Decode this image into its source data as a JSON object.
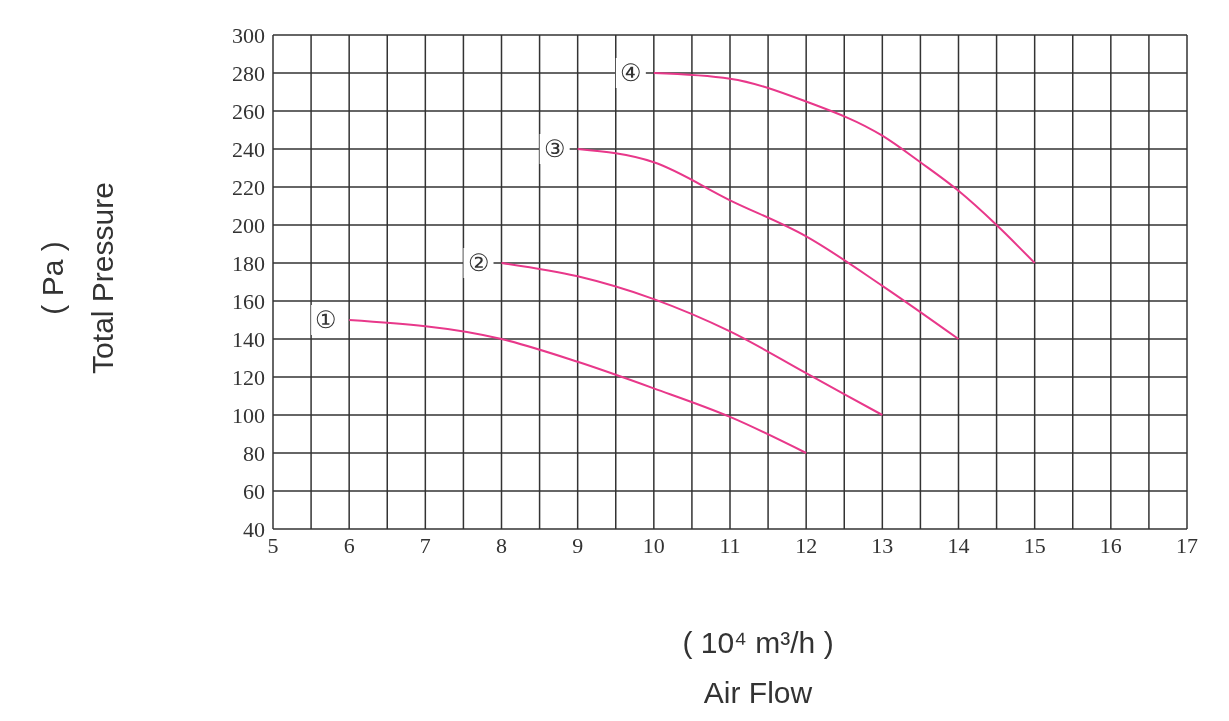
{
  "chart_data": {
    "type": "line",
    "xlabel": "( 10⁴ m³/h )\nAir Flow",
    "ylabel": "( Pa )\nTotal Pressure",
    "xlim": [
      5,
      17
    ],
    "ylim": [
      40,
      300
    ],
    "xticks": [
      5,
      {
        "value": 5.5,
        "label": null
      },
      6,
      {
        "value": 6.5,
        "label": null
      },
      7,
      {
        "value": 7.5,
        "label": null
      },
      8,
      {
        "value": 8.5,
        "label": null
      },
      9,
      {
        "value": 9.5,
        "label": null
      },
      10,
      {
        "value": 10.5,
        "label": null
      },
      11,
      {
        "value": 11.5,
        "label": null
      },
      12,
      {
        "value": 12.5,
        "label": null
      },
      13,
      {
        "value": 13.5,
        "label": null
      },
      14,
      {
        "value": 14.5,
        "label": null
      },
      15,
      {
        "value": 15.5,
        "label": null
      },
      16,
      {
        "value": 16.5,
        "label": null
      },
      17
    ],
    "yticks": [
      40,
      60,
      80,
      100,
      120,
      140,
      160,
      180,
      200,
      220,
      240,
      260,
      280,
      300
    ],
    "grid": true,
    "legend": false,
    "marker": "none",
    "line_style": "solid",
    "series": [
      {
        "name": "①",
        "color": "#e8388a",
        "x": [
          6,
          8,
          9,
          10,
          11,
          12
        ],
        "values": [
          150,
          140,
          128,
          114,
          99,
          80
        ]
      },
      {
        "name": "②",
        "color": "#e8388a",
        "x": [
          8,
          9,
          10,
          11,
          12,
          13
        ],
        "values": [
          180,
          173,
          161,
          144,
          122,
          100
        ]
      },
      {
        "name": "③",
        "color": "#e8388a",
        "x": [
          9,
          10,
          11,
          12,
          13,
          14
        ],
        "values": [
          240,
          233,
          213,
          194,
          168,
          140
        ]
      },
      {
        "name": "④",
        "color": "#e8388a",
        "x": [
          10,
          11,
          12,
          13,
          13.5,
          14,
          14.5,
          15
        ],
        "values": [
          280,
          277,
          265,
          247,
          233,
          218,
          200,
          180
        ]
      }
    ]
  }
}
